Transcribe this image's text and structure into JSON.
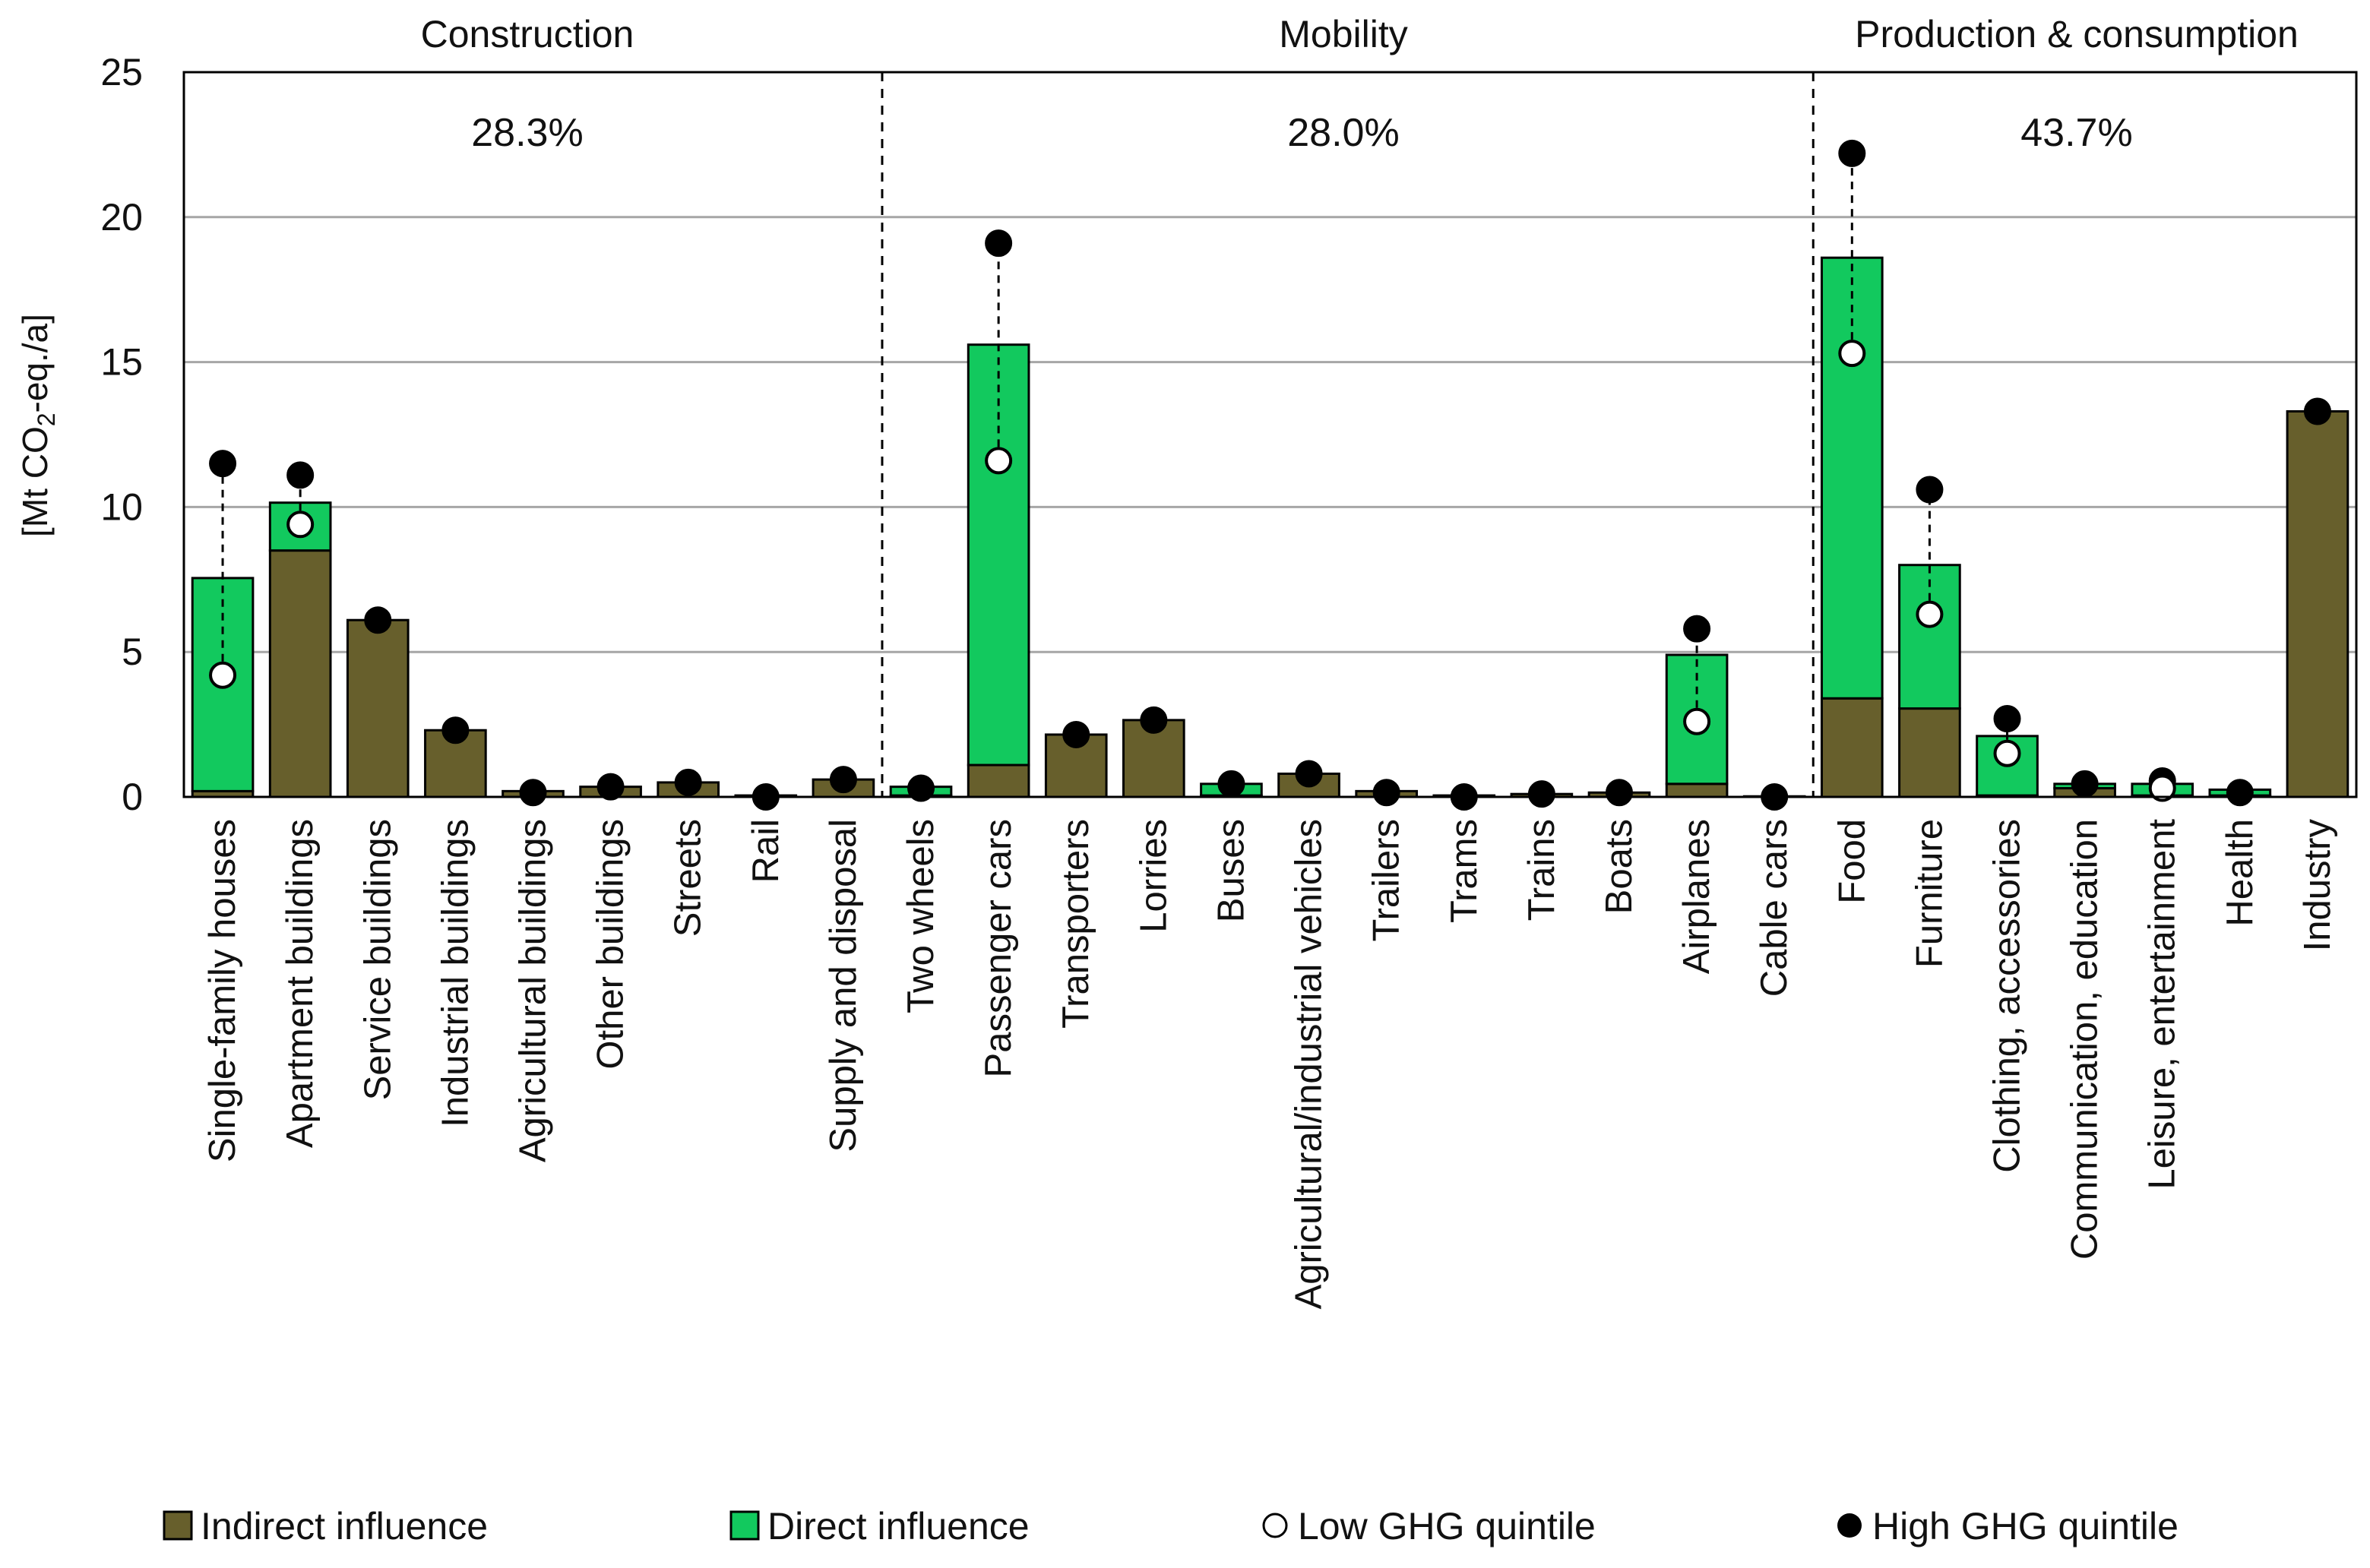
{
  "chart_data": {
    "type": "bar",
    "stacked": true,
    "ylabel_prefix": "[Mt CO",
    "ylabel_sub": "2",
    "ylabel_suffix": "-eq./a]",
    "ylim": [
      0,
      25
    ],
    "yticks": [
      "0",
      "5",
      "10",
      "15",
      "20",
      "25"
    ],
    "grid": true,
    "groups": [
      {
        "name": "Construction",
        "share": "28.3%",
        "start": 0,
        "end": 8
      },
      {
        "name": "Mobility",
        "share": "28.0%",
        "start": 9,
        "end": 20
      },
      {
        "name": "Production & consumption",
        "share": "43.7%",
        "start": 21,
        "end": 27
      }
    ],
    "categories": [
      "Single-family houses",
      "Apartment buildings",
      "Service buildings",
      "Industrial buildings",
      "Agricultural buildings",
      "Other buildings",
      "Streets",
      "Rail",
      "Supply and disposal",
      "Two wheels",
      "Passenger cars",
      "Transporters",
      "Lorries",
      "Buses",
      "Agricultural/industrial vehicles",
      "Trailers",
      "Trams",
      "Trains",
      "Boats",
      "Airplanes",
      "Cable cars",
      "Food",
      "Furniture",
      "Clothing, accessories",
      "Communication, education",
      "Leisure, entertainment",
      "Health",
      "Industry"
    ],
    "series": [
      {
        "name": "Indirect influence",
        "color": "#675f2c",
        "values": [
          0.2,
          8.5,
          6.1,
          2.3,
          0.2,
          0.35,
          0.5,
          0.05,
          0.6,
          0.05,
          1.1,
          2.15,
          2.65,
          0.05,
          0.8,
          0.2,
          0.05,
          0.1,
          0.15,
          0.45,
          0.02,
          3.4,
          3.05,
          0.05,
          0.3,
          0.05,
          0.05,
          13.3
        ]
      },
      {
        "name": "Direct influence",
        "color": "#12c95e",
        "values": [
          7.35,
          1.65,
          0.0,
          0.0,
          0.0,
          0.0,
          0.0,
          0.0,
          0.0,
          0.3,
          14.5,
          0.0,
          0.0,
          0.4,
          0.0,
          0.0,
          0.0,
          0.0,
          0.0,
          4.45,
          0.0,
          15.2,
          4.95,
          2.05,
          0.15,
          0.4,
          0.2,
          0.0
        ]
      }
    ],
    "markers": [
      {
        "name": "Low GHG quintile",
        "style": "hollow",
        "values": [
          4.2,
          9.4,
          null,
          null,
          null,
          null,
          null,
          null,
          null,
          null,
          11.6,
          null,
          null,
          null,
          null,
          null,
          null,
          null,
          null,
          2.6,
          null,
          15.3,
          6.3,
          1.5,
          null,
          0.3,
          null,
          null
        ]
      },
      {
        "name": "High GHG quintile",
        "style": "filled",
        "values": [
          11.5,
          11.1,
          6.1,
          2.3,
          0.15,
          0.35,
          0.5,
          0.0,
          0.6,
          0.3,
          19.1,
          2.15,
          2.65,
          0.45,
          0.8,
          0.15,
          0.0,
          0.1,
          0.15,
          5.8,
          0.0,
          22.2,
          10.6,
          2.7,
          0.45,
          0.55,
          0.15,
          13.3
        ]
      }
    ],
    "legend": [
      {
        "label": "Indirect influence",
        "kind": "square",
        "color": "#675f2c"
      },
      {
        "label": "Direct influence",
        "kind": "square",
        "color": "#12c95e"
      },
      {
        "label": "Low GHG quintile",
        "kind": "hollow-circle",
        "color": "#ffffff"
      },
      {
        "label": "High GHG quintile",
        "kind": "filled-circle",
        "color": "#000000"
      }
    ]
  }
}
